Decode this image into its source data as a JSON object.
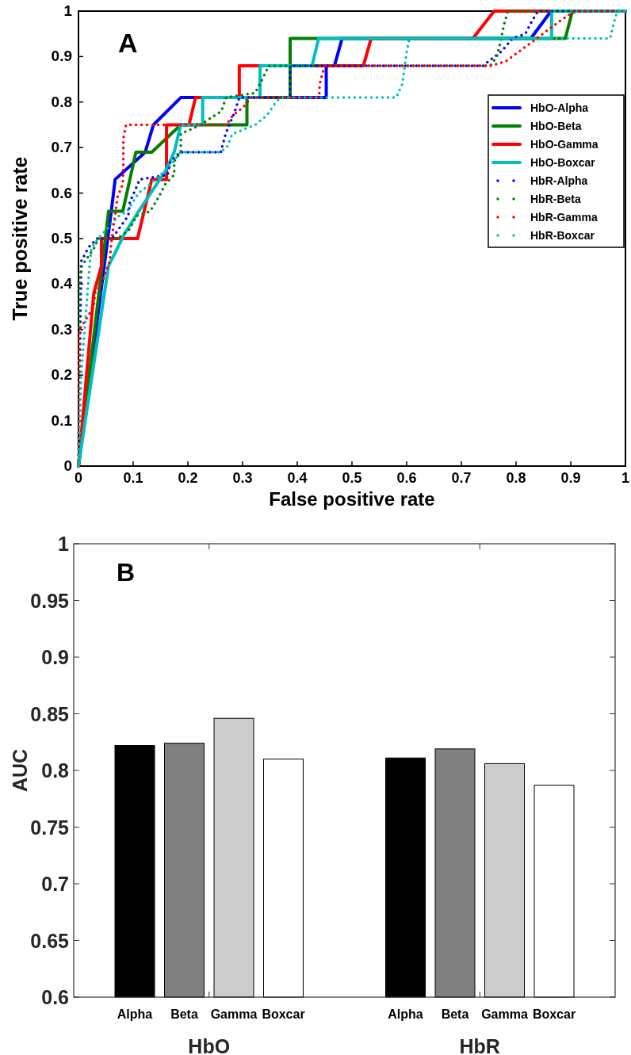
{
  "chart_data": [
    {
      "type": "line",
      "title": "A",
      "xlabel": "False positive rate",
      "ylabel": "True positive rate",
      "xlim": [
        0,
        1
      ],
      "ylim": [
        0,
        1
      ],
      "xticks": [
        0,
        0.1,
        0.2,
        0.3,
        0.4,
        0.5,
        0.6,
        0.7,
        0.8,
        0.9,
        1
      ],
      "yticks": [
        0,
        0.1,
        0.2,
        0.3,
        0.4,
        0.5,
        0.6,
        0.7,
        0.8,
        0.9,
        1
      ],
      "legend": "right",
      "series": [
        {
          "name": "HbO-Alpha",
          "color": "#0000ff",
          "line_style": "solid",
          "x": [
            0,
            0.06,
            0.067,
            0.122,
            0.137,
            0.187,
            0.453,
            0.453,
            0.468,
            0.482,
            0.827,
            0.864,
            1
          ],
          "values": [
            0,
            0.56,
            0.63,
            0.69,
            0.75,
            0.81,
            0.81,
            0.88,
            0.88,
            0.94,
            0.94,
            1,
            1
          ]
        },
        {
          "name": "HbO-Beta",
          "color": "#008000",
          "line_style": "solid",
          "x": [
            0,
            0.055,
            0.081,
            0.105,
            0.134,
            0.187,
            0.308,
            0.308,
            0.387,
            0.387,
            0.89,
            0.903,
            1
          ],
          "values": [
            0,
            0.56,
            0.56,
            0.69,
            0.69,
            0.75,
            0.75,
            0.81,
            0.81,
            0.94,
            0.94,
            1,
            1
          ]
        },
        {
          "name": "HbO-Gamma",
          "color": "#ff0000",
          "line_style": "solid",
          "x": [
            0,
            0.028,
            0.042,
            0.042,
            0.108,
            0.134,
            0.161,
            0.161,
            0.202,
            0.214,
            0.294,
            0.294,
            0.521,
            0.535,
            0.721,
            0.76,
            1
          ],
          "values": [
            0,
            0.38,
            0.44,
            0.5,
            0.5,
            0.63,
            0.63,
            0.75,
            0.75,
            0.81,
            0.81,
            0.88,
            0.88,
            0.94,
            0.94,
            1,
            1
          ]
        },
        {
          "name": "HbO-Boxcar",
          "color": "#00bfbf",
          "line_style": "solid",
          "x": [
            0,
            0.055,
            0.084,
            0.11,
            0.16,
            0.175,
            0.187,
            0.227,
            0.227,
            0.332,
            0.332,
            0.427,
            0.439,
            0.865,
            0.865,
            1
          ],
          "values": [
            0,
            0.44,
            0.51,
            0.56,
            0.65,
            0.69,
            0.75,
            0.75,
            0.81,
            0.81,
            0.88,
            0.88,
            0.94,
            0.94,
            1,
            1
          ]
        },
        {
          "name": "HbR-Alpha",
          "color": "#0000ff",
          "line_style": "dotted",
          "x": [
            0,
            0.005,
            0.018,
            0.034,
            0.061,
            0.091,
            0.094,
            0.112,
            0.163,
            0.168,
            0.186,
            0.243,
            0.26,
            0.269,
            0.286,
            0.294,
            0.387,
            0.387,
            0.74,
            0.75,
            0.772,
            0.794,
            0.817,
            0.83,
            0.84,
            1
          ],
          "values": [
            0,
            0.45,
            0.48,
            0.5,
            0.5,
            0.55,
            0.58,
            0.63,
            0.64,
            0.67,
            0.69,
            0.69,
            0.69,
            0.73,
            0.78,
            0.81,
            0.81,
            0.88,
            0.88,
            0.89,
            0.91,
            0.94,
            0.95,
            0.98,
            1,
            1
          ]
        },
        {
          "name": "HbR-Beta",
          "color": "#008000",
          "line_style": "dotted",
          "x": [
            0,
            0.002,
            0.006,
            0.029,
            0.036,
            0.071,
            0.093,
            0.106,
            0.131,
            0.146,
            0.159,
            0.175,
            0.175,
            0.187,
            0.187,
            0.223,
            0.261,
            0.27,
            0.323,
            0.336,
            0.348,
            0.753,
            0.765,
            0.771,
            0.778,
            0.785,
            1
          ],
          "values": [
            0,
            0.41,
            0.44,
            0.48,
            0.5,
            0.5,
            0.52,
            0.55,
            0.56,
            0.59,
            0.62,
            0.64,
            0.67,
            0.69,
            0.73,
            0.75,
            0.78,
            0.81,
            0.82,
            0.85,
            0.88,
            0.88,
            0.9,
            0.93,
            0.97,
            1,
            1
          ]
        },
        {
          "name": "HbR-Gamma",
          "color": "#ff0000",
          "line_style": "dotted",
          "x": [
            0,
            0.002,
            0.028,
            0.03,
            0.042,
            0.057,
            0.06,
            0.063,
            0.068,
            0.071,
            0.081,
            0.082,
            0.082,
            0.087,
            0.115,
            0.27,
            0.282,
            0.302,
            0.316,
            0.44,
            0.441,
            0.45,
            0.755,
            0.782,
            0.804,
            0.827,
            0.849,
            0.871,
            0.894,
            0.91,
            1
          ],
          "values": [
            0,
            0.3,
            0.35,
            0.38,
            0.4,
            0.45,
            0.49,
            0.52,
            0.56,
            0.59,
            0.62,
            0.66,
            0.72,
            0.75,
            0.75,
            0.75,
            0.77,
            0.79,
            0.81,
            0.81,
            0.84,
            0.88,
            0.88,
            0.89,
            0.91,
            0.93,
            0.95,
            0.97,
            0.99,
            1,
            1
          ]
        },
        {
          "name": "HbR-Boxcar",
          "color": "#00bfbf",
          "line_style": "dotted",
          "x": [
            0,
            0.005,
            0.019,
            0.021,
            0.024,
            0.036,
            0.074,
            0.089,
            0.11,
            0.131,
            0.168,
            0.187,
            0.259,
            0.271,
            0.281,
            0.323,
            0.344,
            0.361,
            0.37,
            0.581,
            0.592,
            0.6,
            0.605,
            0.917,
            0.972,
            0.98,
            0.985,
            1
          ],
          "values": [
            0,
            0.2,
            0.42,
            0.45,
            0.48,
            0.5,
            0.55,
            0.56,
            0.6,
            0.62,
            0.66,
            0.69,
            0.69,
            0.7,
            0.73,
            0.75,
            0.77,
            0.8,
            0.81,
            0.81,
            0.84,
            0.91,
            0.94,
            0.94,
            0.94,
            0.98,
            1,
            1
          ]
        }
      ]
    },
    {
      "type": "bar",
      "title": "B",
      "ylabel": "AUC",
      "categories": [
        "HbO",
        "HbR"
      ],
      "ylim": [
        0.6,
        1
      ],
      "yticks": [
        0.6,
        0.65,
        0.7,
        0.75,
        0.8,
        0.85,
        0.9,
        0.95,
        1
      ],
      "series": [
        {
          "name": "Alpha",
          "color": "#000000",
          "values": [
            0.822,
            0.811
          ]
        },
        {
          "name": "Beta",
          "color": "#808080",
          "values": [
            0.824,
            0.819
          ]
        },
        {
          "name": "Gamma",
          "color": "#cccccc",
          "values": [
            0.846,
            0.806
          ]
        },
        {
          "name": "Boxcar",
          "color": "#ffffff",
          "values": [
            0.81,
            0.787
          ]
        }
      ]
    }
  ]
}
